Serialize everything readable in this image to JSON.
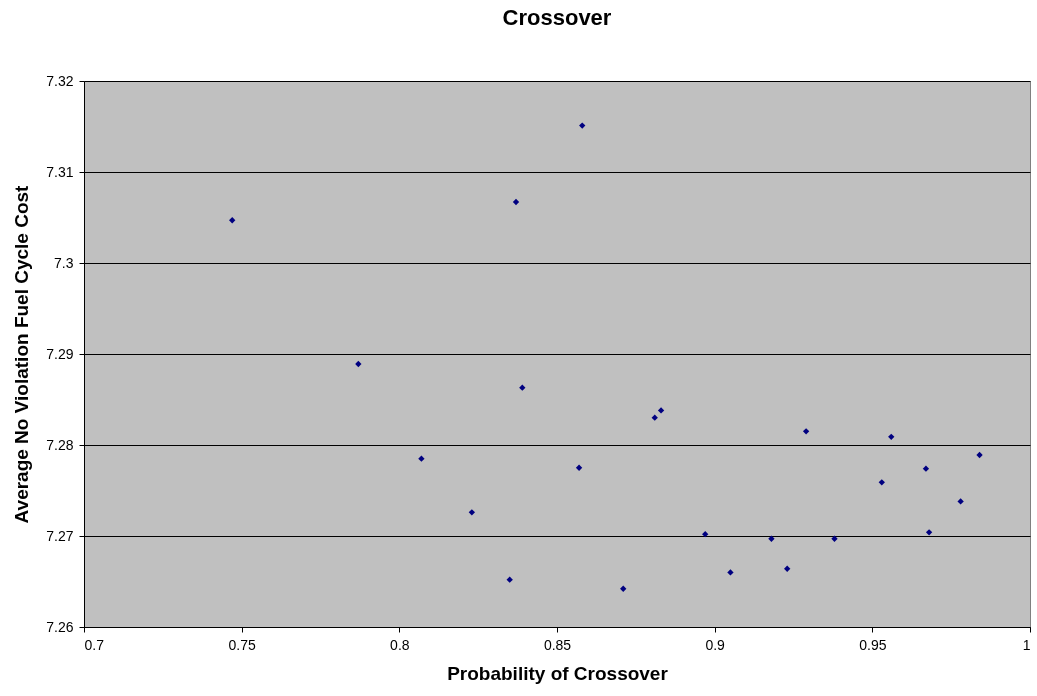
{
  "chart_data": {
    "type": "scatter",
    "title": "Crossover",
    "xlabel": "Probability of Crossover",
    "ylabel": "Average No Violation Fuel Cycle Cost",
    "x": [
      0.747,
      0.858,
      0.837,
      0.787,
      0.839,
      0.807,
      0.823,
      0.835,
      0.857,
      0.871,
      0.881,
      0.883,
      0.897,
      0.905,
      0.918,
      0.923,
      0.929,
      0.938,
      0.953,
      0.956,
      0.967,
      0.968,
      0.978,
      0.984
    ],
    "series": [
      {
        "color": "#000080",
        "values": [
          7.3047,
          7.3151,
          7.3067,
          7.2889,
          7.2863,
          7.2785,
          7.2726,
          7.2652,
          7.2775,
          7.2642,
          7.283,
          7.2838,
          7.2702,
          7.266,
          7.2697,
          7.2664,
          7.2815,
          7.2697,
          7.2759,
          7.2809,
          7.2774,
          7.2704,
          7.2738,
          7.2789
        ]
      }
    ],
    "xlim": [
      0.7,
      1
    ],
    "xticks": [
      0.7,
      0.75,
      0.8,
      0.85,
      0.9,
      0.95,
      1
    ],
    "ylim": [
      7.26,
      7.32
    ],
    "yticks": [
      7.26,
      7.27,
      7.28,
      7.29,
      7.3,
      7.31,
      7.32
    ],
    "grid": "y",
    "marker": "diamond"
  }
}
